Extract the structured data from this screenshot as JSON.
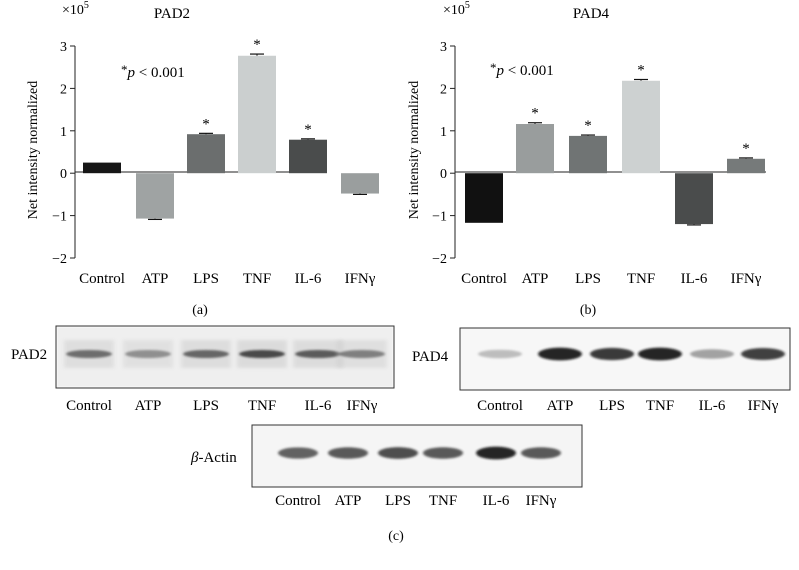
{
  "chart_data": [
    {
      "type": "bar",
      "title": "PAD2",
      "ylabel": "Net intensity normalized",
      "multiplier": "×10",
      "multiplier_exp": "5",
      "ylim": [
        -2,
        3
      ],
      "yticks": [
        "−2",
        "−1",
        "0",
        "1",
        "2",
        "3"
      ],
      "categories": [
        "Control",
        "ATP",
        "LPS",
        "TNF",
        "IL-6",
        "IFNγ"
      ],
      "values": [
        0.25,
        -1.07,
        0.92,
        2.77,
        0.79,
        -0.48
      ],
      "errors": [
        0.0,
        0.02,
        0.02,
        0.04,
        0.02,
        0.02
      ],
      "significant": [
        false,
        false,
        true,
        true,
        true,
        false
      ],
      "colors": [
        "#161616",
        "#9fa3a3",
        "#6b6e6e",
        "#cbcfcf",
        "#4a4c4c",
        "#9a9e9e"
      ],
      "annotation_star": "*",
      "annotation_p": "p",
      "annotation_rest": " < 0.001",
      "sig_marker": "*",
      "panel_label": "(a)"
    },
    {
      "type": "bar",
      "title": "PAD4",
      "ylabel": "Net intensity normalized",
      "multiplier": "×10",
      "multiplier_exp": "5",
      "ylim": [
        -2,
        3
      ],
      "yticks": [
        "−2",
        "−1",
        "0",
        "1",
        "2",
        "3"
      ],
      "categories": [
        "Control",
        "ATP",
        "LPS",
        "TNF",
        "IL-6",
        "IFNγ"
      ],
      "values": [
        -1.17,
        1.16,
        0.88,
        2.18,
        -1.2,
        0.34
      ],
      "errors": [
        0.0,
        0.03,
        0.02,
        0.03,
        0.02,
        0.02
      ],
      "significant": [
        false,
        true,
        true,
        true,
        false,
        true
      ],
      "colors": [
        "#111111",
        "#999d9d",
        "#707474",
        "#cdd1d1",
        "#4a4c4c",
        "#767a7a"
      ],
      "annotation_star": "*",
      "annotation_p": "p",
      "annotation_rest": " < 0.001",
      "sig_marker": "*",
      "panel_label": "(b)"
    }
  ],
  "blots": {
    "pad2": {
      "label": "PAD2",
      "lanes": [
        "Control",
        "ATP",
        "LPS",
        "TNF",
        "IL-6",
        "IFNγ"
      ],
      "band_intensity": [
        0.55,
        0.35,
        0.6,
        0.75,
        0.65,
        0.45
      ]
    },
    "pad4": {
      "label": "PAD4",
      "lanes": [
        "Control",
        "ATP",
        "LPS",
        "TNF",
        "IL-6",
        "IFNγ"
      ],
      "band_intensity": [
        0.12,
        0.95,
        0.85,
        0.95,
        0.3,
        0.8
      ]
    },
    "actin": {
      "label_greek": "β",
      "label_rest": "-Actin",
      "lanes": [
        "Control",
        "ATP",
        "LPS",
        "TNF",
        "IL-6",
        "IFNγ"
      ],
      "band_intensity": [
        0.65,
        0.7,
        0.75,
        0.7,
        0.95,
        0.7
      ]
    },
    "panel_label": "(c)"
  }
}
